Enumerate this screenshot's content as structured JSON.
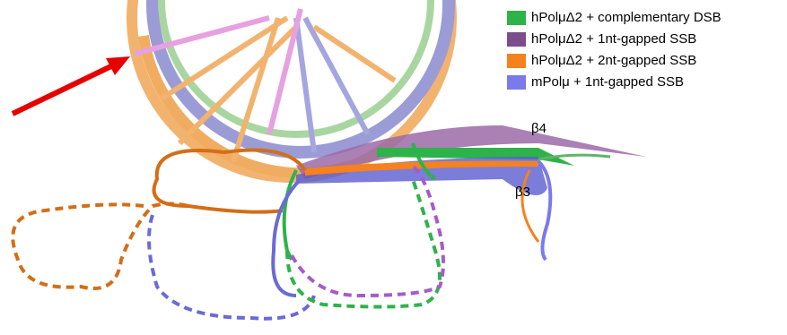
{
  "legend": [
    {
      "label": "hPolμΔ2 + complementary DSB",
      "color": "#2db34a"
    },
    {
      "label": "hPolμΔ2 + 1nt-gapped SSB",
      "color": "#7d4c8c"
    },
    {
      "label": "hPolμΔ2 + 2nt-gapped SSB",
      "color": "#f5821f"
    },
    {
      "label": "mPolμ + 1nt-gapped SSB",
      "color": "#7a7aec"
    }
  ],
  "labels": {
    "beta4": "β4",
    "beta3": "β3"
  }
}
